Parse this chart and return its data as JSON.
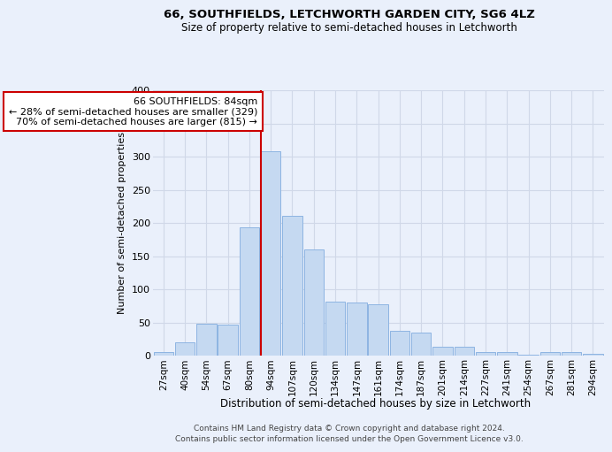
{
  "title1": "66, SOUTHFIELDS, LETCHWORTH GARDEN CITY, SG6 4LZ",
  "title2": "Size of property relative to semi-detached houses in Letchworth",
  "xlabel": "Distribution of semi-detached houses by size in Letchworth",
  "ylabel": "Number of semi-detached properties",
  "footer1": "Contains HM Land Registry data © Crown copyright and database right 2024.",
  "footer2": "Contains public sector information licensed under the Open Government Licence v3.0.",
  "categories": [
    "27sqm",
    "40sqm",
    "54sqm",
    "67sqm",
    "80sqm",
    "94sqm",
    "107sqm",
    "120sqm",
    "134sqm",
    "147sqm",
    "161sqm",
    "174sqm",
    "187sqm",
    "201sqm",
    "214sqm",
    "227sqm",
    "241sqm",
    "254sqm",
    "267sqm",
    "281sqm",
    "294sqm"
  ],
  "values": [
    5,
    20,
    48,
    47,
    193,
    308,
    211,
    160,
    82,
    80,
    78,
    37,
    35,
    13,
    13,
    5,
    5,
    2,
    5,
    6,
    3
  ],
  "bar_color": "#c5d9f1",
  "bar_edge_color": "#8db4e2",
  "red_line_bin_index": 5,
  "annotation_text": "66 SOUTHFIELDS: 84sqm\n← 28% of semi-detached houses are smaller (329)\n70% of semi-detached houses are larger (815) →",
  "ylim": [
    0,
    400
  ],
  "yticks": [
    0,
    50,
    100,
    150,
    200,
    250,
    300,
    350,
    400
  ],
  "bg_color": "#eaf0fb",
  "grid_color": "#d0d8e8",
  "annotation_box_color": "#ffffff",
  "annotation_box_edge": "#cc0000",
  "red_line_color": "#cc0000"
}
